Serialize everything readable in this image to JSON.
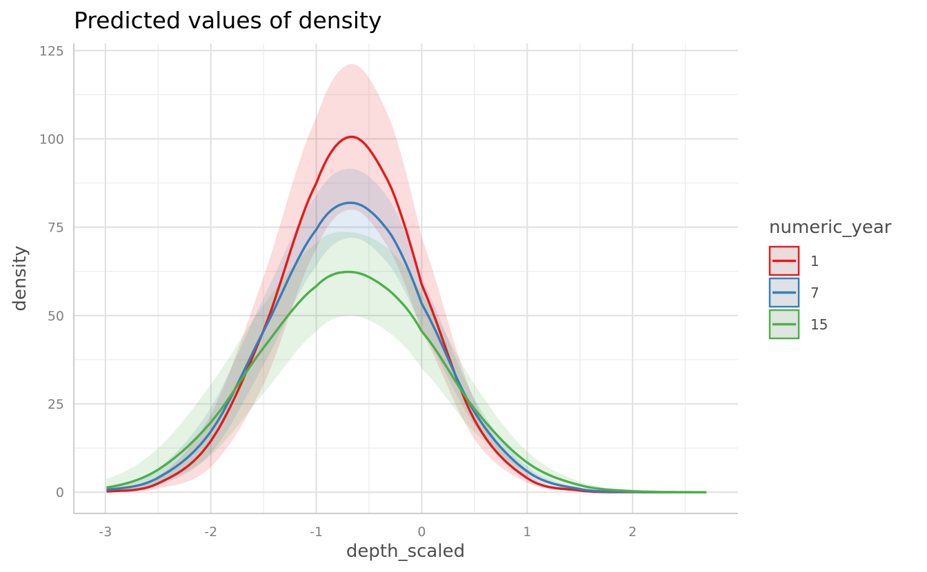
{
  "chart_data": {
    "type": "line",
    "title": "Predicted values of density",
    "xlabel": "depth_scaled",
    "ylabel": "density",
    "xlim": [
      -3.3,
      3.0
    ],
    "ylim": [
      -6,
      127
    ],
    "x_ticks": [
      -3,
      -2,
      -1,
      0,
      1,
      2
    ],
    "x_tick_labels": [
      "-3",
      "-2",
      "-1",
      "0",
      "1",
      "2"
    ],
    "y_ticks": [
      0,
      25,
      50,
      75,
      100,
      125
    ],
    "y_tick_labels": [
      "0",
      "25",
      "50",
      "75",
      "100",
      "125"
    ],
    "grid": true,
    "legend": {
      "title": "numeric_year",
      "position": "right"
    },
    "x_range": [
      -2.99,
      2.7
    ],
    "series": [
      {
        "name": "1",
        "color": "#e41a1c",
        "x": [
          -2.99,
          -2.5,
          -2.0,
          -1.5,
          -1.0,
          -0.66,
          -0.3,
          0.0,
          0.5,
          1.0,
          1.5,
          2.0,
          2.7
        ],
        "y": [
          0.2,
          2.5,
          14.5,
          45.8,
          87.4,
          100.6,
          86.9,
          58.7,
          20.5,
          4.0,
          0.5,
          0.04,
          0.0
        ],
        "lower": [
          0.0,
          1.0,
          7.2,
          30.5,
          68.8,
          80.0,
          68.4,
          45.5,
          15.0,
          2.7,
          0.3,
          0.02,
          0.0
        ],
        "upper": [
          0.6,
          4.5,
          22.0,
          61.0,
          106.0,
          121.2,
          105.4,
          72.0,
          26.0,
          5.3,
          0.7,
          0.06,
          0.0
        ]
      },
      {
        "name": "7",
        "color": "#377eb8",
        "x": [
          -2.99,
          -2.5,
          -2.0,
          -1.5,
          -1.0,
          -0.66,
          -0.3,
          0.0,
          0.5,
          1.0,
          1.5,
          2.0,
          2.7
        ],
        "y": [
          0.7,
          4.1,
          17.2,
          45.6,
          74.3,
          81.9,
          73.3,
          53.3,
          22.7,
          5.9,
          0.9,
          0.1,
          0.0
        ],
        "lower": [
          0.2,
          2.0,
          11.0,
          36.0,
          64.0,
          72.0,
          64.0,
          46.0,
          19.0,
          4.5,
          0.6,
          0.05,
          0.0
        ],
        "upper": [
          1.5,
          6.8,
          24.0,
          55.0,
          84.0,
          91.5,
          82.5,
          60.5,
          26.5,
          7.3,
          1.2,
          0.15,
          0.0
        ]
      },
      {
        "name": "15",
        "color": "#4daf4a",
        "x": [
          -2.99,
          -2.5,
          -2.0,
          -1.5,
          -1.0,
          -0.66,
          -0.3,
          0.0,
          0.5,
          1.0,
          1.5,
          2.0,
          2.7
        ],
        "y": [
          1.3,
          6.4,
          19.8,
          40.9,
          58.3,
          62.3,
          56.9,
          45.5,
          23.6,
          8.4,
          2.0,
          0.3,
          0.0
        ],
        "lower": [
          0.2,
          2.5,
          10.5,
          28.0,
          45.5,
          50.0,
          45.0,
          35.0,
          17.0,
          5.5,
          1.1,
          0.15,
          0.0
        ],
        "upper": [
          3.8,
          12.5,
          30.5,
          53.0,
          70.5,
          73.5,
          68.5,
          56.0,
          30.5,
          11.5,
          3.0,
          0.5,
          0.0
        ]
      }
    ]
  }
}
